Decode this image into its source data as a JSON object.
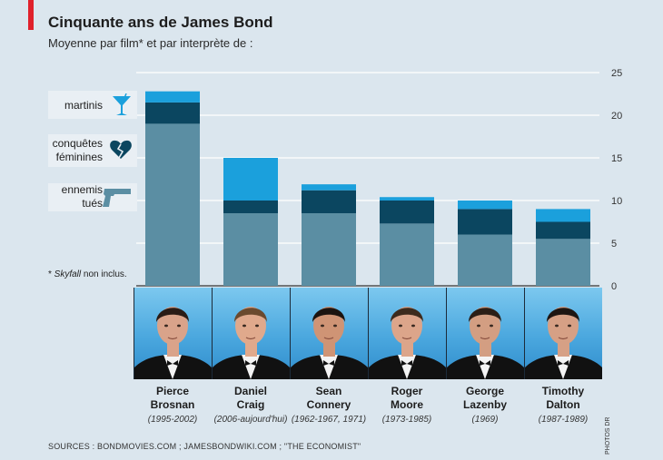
{
  "title": "Cinquante ans de James Bond",
  "subtitle": "Moyenne par film* et par interprète de :",
  "legend": [
    {
      "label_line1": "martinis",
      "label_line2": "",
      "icon": "martini-glass-icon",
      "color": "#1ba0dc"
    },
    {
      "label_line1": "conquêtes",
      "label_line2": "féminines",
      "icon": "broken-heart-icon",
      "color": "#0b4660"
    },
    {
      "label_line1": "ennemis",
      "label_line2": "tués",
      "icon": "pistol-icon",
      "color": "#5b8ea3"
    }
  ],
  "note_italic": "Skyfall",
  "note_rest": "non inclus.",
  "note_prefix": "* ",
  "chart_data": {
    "type": "bar",
    "stacked": true,
    "title": "Cinquante ans de James Bond",
    "ylim": [
      0,
      25
    ],
    "yticks": [
      "25",
      "20",
      "15",
      "10",
      "5",
      "0"
    ],
    "ytick_values": [
      25,
      20,
      15,
      10,
      5,
      0
    ],
    "categories": [
      "Pierce Brosnan",
      "Daniel Craig",
      "Sean Connery",
      "Roger Moore",
      "George Lazenby",
      "Timothy Dalton"
    ],
    "series": [
      {
        "name": "ennemis tués",
        "color": "#5b8ea3",
        "values": [
          19,
          8.5,
          8.5,
          7.3,
          6,
          5.5
        ]
      },
      {
        "name": "conquêtes féminines",
        "color": "#0b4660",
        "values": [
          2.5,
          1.5,
          2.7,
          2.7,
          3,
          2
        ]
      },
      {
        "name": "martinis",
        "color": "#1ba0dc",
        "values": [
          1.3,
          5,
          0.7,
          0.4,
          1,
          1.5
        ]
      }
    ]
  },
  "actors": [
    {
      "first": "Pierce",
      "last": "Brosnan",
      "years": "(1995-2002)"
    },
    {
      "first": "Daniel",
      "last": "Craig",
      "years": "(2006-aujourd'hui)"
    },
    {
      "first": "Sean",
      "last": "Connery",
      "years": "(1962-1967, 1971)"
    },
    {
      "first": "Roger",
      "last": "Moore",
      "years": "(1973-1985)"
    },
    {
      "first": "George",
      "last": "Lazenby",
      "years": "(1969)"
    },
    {
      "first": "Timothy",
      "last": "Dalton",
      "years": "(1987-1989)"
    }
  ],
  "photo_credit": "PHOTOS DR",
  "sources": "SOURCES : BONDMOVIES.COM ; JAMESBONDWIKI.COM ; \"THE ECONOMIST\""
}
